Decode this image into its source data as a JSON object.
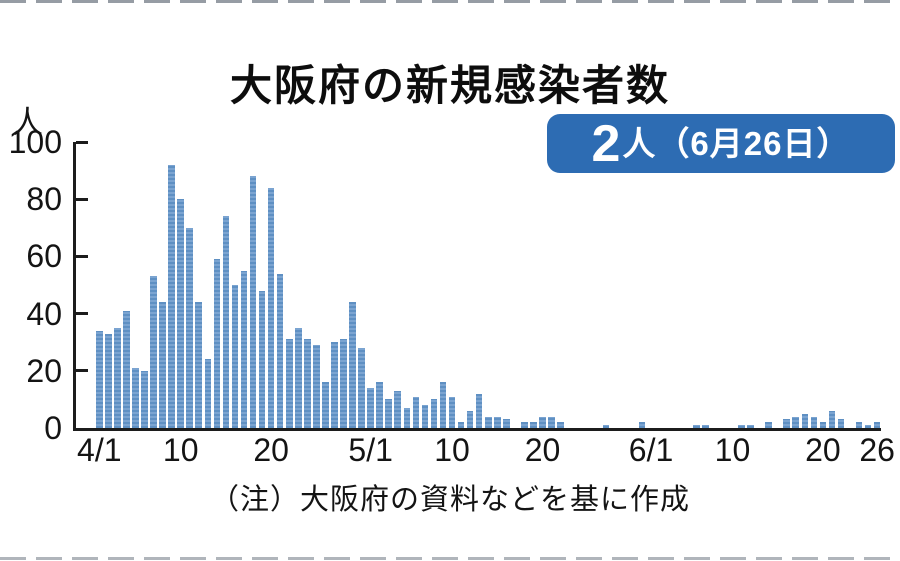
{
  "page": {
    "title": "大阪府の新規感染者数",
    "unit_label": "人",
    "note": "（注）大阪府の資料などを基に作成",
    "badge": {
      "count": "2",
      "suffix": "人（6月26日）"
    }
  },
  "colors": {
    "bar": "#6996c9",
    "badge_bg": "#2d6cb3",
    "badge_text": "#ffffff",
    "axis": "#1c1c1c"
  },
  "chart_data": {
    "type": "bar",
    "title": "大阪府の新規感染者数",
    "ylabel": "人",
    "ylim": [
      0,
      100
    ],
    "yticks": [
      0,
      20,
      40,
      60,
      80,
      100
    ],
    "grid": false,
    "legend": "none",
    "annotation": "2人（6月26日）",
    "xtick_labels": [
      "4/1",
      "10",
      "20",
      "5/1",
      "10",
      "20",
      "6/1",
      "10",
      "20",
      "26"
    ],
    "xtick_day_indices": [
      0,
      9,
      19,
      30,
      39,
      49,
      61,
      70,
      80,
      86
    ],
    "categories": [
      "4/1",
      "4/2",
      "4/3",
      "4/4",
      "4/5",
      "4/6",
      "4/7",
      "4/8",
      "4/9",
      "4/10",
      "4/11",
      "4/12",
      "4/13",
      "4/14",
      "4/15",
      "4/16",
      "4/17",
      "4/18",
      "4/19",
      "4/20",
      "4/21",
      "4/22",
      "4/23",
      "4/24",
      "4/25",
      "4/26",
      "4/27",
      "4/28",
      "4/29",
      "4/30",
      "5/1",
      "5/2",
      "5/3",
      "5/4",
      "5/5",
      "5/6",
      "5/7",
      "5/8",
      "5/9",
      "5/10",
      "5/11",
      "5/12",
      "5/13",
      "5/14",
      "5/15",
      "5/16",
      "5/17",
      "5/18",
      "5/19",
      "5/20",
      "5/21",
      "5/22",
      "5/23",
      "5/24",
      "5/25",
      "5/26",
      "5/27",
      "5/28",
      "5/29",
      "5/30",
      "5/31",
      "6/1",
      "6/2",
      "6/3",
      "6/4",
      "6/5",
      "6/6",
      "6/7",
      "6/8",
      "6/9",
      "6/10",
      "6/11",
      "6/12",
      "6/13",
      "6/14",
      "6/15",
      "6/16",
      "6/17",
      "6/18",
      "6/19",
      "6/20",
      "6/21",
      "6/22",
      "6/23",
      "6/24",
      "6/25",
      "6/26"
    ],
    "values": [
      34,
      33,
      35,
      41,
      21,
      20,
      53,
      44,
      92,
      80,
      70,
      44,
      24,
      59,
      74,
      50,
      55,
      88,
      48,
      84,
      54,
      31,
      35,
      31,
      29,
      16,
      30,
      31,
      44,
      28,
      14,
      16,
      10,
      13,
      7,
      11,
      8,
      10,
      16,
      11,
      2,
      6,
      12,
      4,
      4,
      3,
      0,
      2,
      2,
      4,
      4,
      2,
      0,
      0,
      0,
      0,
      1,
      0,
      0,
      0,
      2,
      0,
      0,
      0,
      0,
      0,
      1,
      1,
      0,
      0,
      0,
      1,
      1,
      0,
      2,
      0,
      3,
      4,
      5,
      4,
      2,
      6,
      3,
      0,
      2,
      1,
      2
    ]
  }
}
